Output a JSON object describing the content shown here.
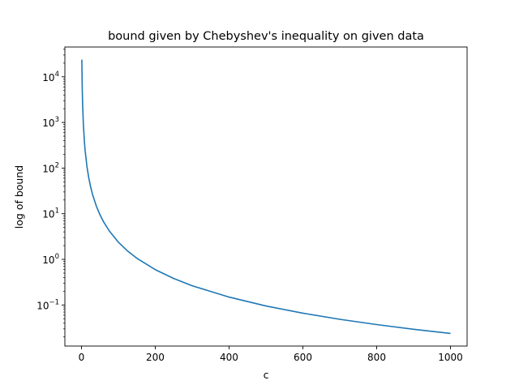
{
  "chart_data": {
    "type": "line",
    "title": "bound given by Chebyshev's inequality on given data",
    "xlabel": "c",
    "ylabel": "log of bound",
    "xlim": [
      -45,
      1045
    ],
    "ylim": [
      0.0126,
      45000
    ],
    "yscale": "log",
    "grid": false,
    "xticks": [
      0,
      200,
      400,
      600,
      800,
      1000
    ],
    "xtick_labels": [
      "0",
      "200",
      "400",
      "600",
      "800",
      "1000"
    ],
    "yticks": [
      0.1,
      1,
      10,
      100,
      1000,
      10000
    ],
    "ytick_labels": [
      {
        "base": "10",
        "exp": "−1"
      },
      {
        "base": "10",
        "exp": "0"
      },
      {
        "base": "10",
        "exp": "1"
      },
      {
        "base": "10",
        "exp": "2"
      },
      {
        "base": "10",
        "exp": "3"
      },
      {
        "base": "10",
        "exp": "4"
      }
    ],
    "series": [
      {
        "color": "#1f77b4",
        "x": [
          1,
          2,
          3,
          5,
          8,
          10,
          15,
          20,
          25,
          30,
          40,
          50,
          60,
          75,
          100,
          125,
          150,
          200,
          250,
          300,
          400,
          500,
          600,
          700,
          800,
          900,
          1000
        ],
        "y": [
          23800,
          5950,
          2644,
          952,
          371.9,
          238,
          105.8,
          59.5,
          38.1,
          26.4,
          14.9,
          9.52,
          6.61,
          4.23,
          2.38,
          1.52,
          1.058,
          0.595,
          0.381,
          0.264,
          0.149,
          0.0952,
          0.0661,
          0.0486,
          0.0372,
          0.0294,
          0.0238
        ]
      }
    ]
  }
}
